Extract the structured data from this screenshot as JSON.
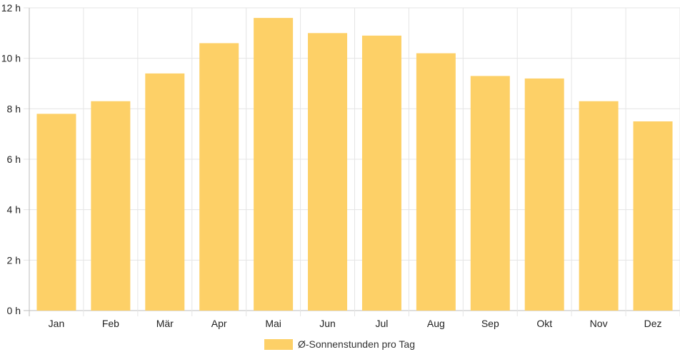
{
  "chart_data": {
    "type": "bar",
    "categories": [
      "Jan",
      "Feb",
      "Mär",
      "Apr",
      "Mai",
      "Jun",
      "Jul",
      "Aug",
      "Sep",
      "Okt",
      "Nov",
      "Dez"
    ],
    "series": [
      {
        "name": "Ø-Sonnenstunden pro Tag",
        "values": [
          7.8,
          8.3,
          9.4,
          10.6,
          11.6,
          11.0,
          10.9,
          10.2,
          9.3,
          9.2,
          8.3,
          7.5
        ],
        "color": "#fdd067"
      }
    ],
    "y_ticks": [
      "0 h",
      "2 h",
      "4 h",
      "6 h",
      "8 h",
      "10 h",
      "12 h"
    ],
    "ylim": [
      0,
      12
    ],
    "grid": true,
    "legend_position": "bottom",
    "title": "",
    "xlabel": "",
    "ylabel": ""
  }
}
